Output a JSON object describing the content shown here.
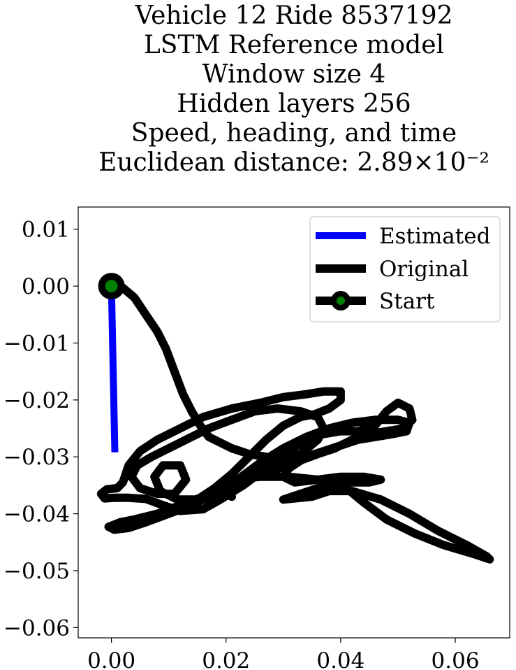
{
  "chart_data": {
    "type": "line",
    "title_lines": [
      "Vehicle 12 Ride 8537192",
      "LSTM Reference model",
      "Window size 4",
      "Hidden layers 256",
      "Speed, heading, and time",
      "Euclidean distance: 2.89×10⁻²"
    ],
    "xlabel": "",
    "ylabel": "",
    "xlim": [
      -0.0058,
      0.0695
    ],
    "ylim": [
      -0.0618,
      0.0139
    ],
    "x_ticks": [
      {
        "value": 0.0,
        "label": "0.00"
      },
      {
        "value": 0.02,
        "label": "0.02"
      },
      {
        "value": 0.04,
        "label": "0.04"
      },
      {
        "value": 0.06,
        "label": "0.06"
      }
    ],
    "y_ticks": [
      {
        "value": 0.01,
        "label": "0.01"
      },
      {
        "value": 0.0,
        "label": "0.00"
      },
      {
        "value": -0.01,
        "label": "−0.01"
      },
      {
        "value": -0.02,
        "label": "−0.02"
      },
      {
        "value": -0.03,
        "label": "−0.03"
      },
      {
        "value": -0.04,
        "label": "−0.04"
      },
      {
        "value": -0.05,
        "label": "−0.05"
      },
      {
        "value": -0.06,
        "label": "−0.06"
      }
    ],
    "grid": false,
    "legend_position": "top-right",
    "series": [
      {
        "name": "Estimated",
        "color": "#0000ff",
        "points": [
          [
            0.0,
            0.0
          ],
          [
            0.0006,
            -0.0292
          ]
        ]
      },
      {
        "name": "Original",
        "color": "#000000",
        "points": [
          [
            0.0,
            0.0
          ],
          [
            0.002,
            -0.0003
          ],
          [
            0.004,
            -0.002
          ],
          [
            0.006,
            -0.005
          ],
          [
            0.008,
            -0.008
          ],
          [
            0.0095,
            -0.011
          ],
          [
            0.011,
            -0.015
          ],
          [
            0.0125,
            -0.019
          ],
          [
            0.014,
            -0.022
          ],
          [
            0.0155,
            -0.0245
          ],
          [
            0.017,
            -0.0265
          ],
          [
            0.019,
            -0.0275
          ],
          [
            0.021,
            -0.0285
          ],
          [
            0.024,
            -0.0295
          ],
          [
            0.027,
            -0.03
          ],
          [
            0.03,
            -0.0305
          ],
          [
            0.033,
            -0.0295
          ],
          [
            0.036,
            -0.027
          ],
          [
            0.037,
            -0.025
          ],
          [
            0.036,
            -0.023
          ],
          [
            0.033,
            -0.022
          ],
          [
            0.029,
            -0.0215
          ],
          [
            0.025,
            -0.022
          ],
          [
            0.021,
            -0.0235
          ],
          [
            0.017,
            -0.025
          ],
          [
            0.013,
            -0.027
          ],
          [
            0.01,
            -0.0285
          ],
          [
            0.007,
            -0.03
          ],
          [
            0.0045,
            -0.0315
          ],
          [
            0.0035,
            -0.0335
          ],
          [
            0.005,
            -0.0355
          ],
          [
            0.008,
            -0.0365
          ],
          [
            0.011,
            -0.0365
          ],
          [
            0.013,
            -0.034
          ],
          [
            0.012,
            -0.0315
          ],
          [
            0.009,
            -0.0315
          ],
          [
            0.0075,
            -0.0335
          ],
          [
            0.0085,
            -0.036
          ],
          [
            0.0115,
            -0.0375
          ],
          [
            0.015,
            -0.0375
          ],
          [
            0.018,
            -0.0355
          ],
          [
            0.021,
            -0.033
          ],
          [
            0.024,
            -0.03
          ],
          [
            0.027,
            -0.027
          ],
          [
            0.03,
            -0.0245
          ],
          [
            0.033,
            -0.023
          ],
          [
            0.0355,
            -0.0225
          ],
          [
            0.038,
            -0.0215
          ],
          [
            0.04,
            -0.02
          ],
          [
            0.04,
            -0.0185
          ],
          [
            0.037,
            -0.0185
          ],
          [
            0.034,
            -0.019
          ],
          [
            0.03,
            -0.0195
          ],
          [
            0.026,
            -0.0205
          ],
          [
            0.021,
            -0.0215
          ],
          [
            0.016,
            -0.023
          ],
          [
            0.012,
            -0.025
          ],
          [
            0.008,
            -0.027
          ],
          [
            0.005,
            -0.029
          ],
          [
            0.003,
            -0.0315
          ],
          [
            0.002,
            -0.0345
          ],
          [
            0.001,
            -0.0355
          ],
          [
            -0.0008,
            -0.0357
          ],
          [
            -0.0018,
            -0.0365
          ],
          [
            -0.0012,
            -0.0373
          ],
          [
            0.0005,
            -0.0372
          ],
          [
            0.003,
            -0.0372
          ],
          [
            0.006,
            -0.0374
          ],
          [
            0.009,
            -0.0385
          ],
          [
            0.012,
            -0.0395
          ],
          [
            0.016,
            -0.0392
          ],
          [
            0.019,
            -0.0375
          ],
          [
            0.023,
            -0.035
          ],
          [
            0.027,
            -0.032
          ],
          [
            0.031,
            -0.029
          ],
          [
            0.034,
            -0.027
          ],
          [
            0.037,
            -0.026
          ],
          [
            0.04,
            -0.0255
          ],
          [
            0.043,
            -0.0255
          ],
          [
            0.046,
            -0.0245
          ],
          [
            0.048,
            -0.022
          ],
          [
            0.05,
            -0.0205
          ],
          [
            0.052,
            -0.0215
          ],
          [
            0.0525,
            -0.0235
          ],
          [
            0.051,
            -0.025
          ],
          [
            0.048,
            -0.0255
          ],
          [
            0.045,
            -0.026
          ],
          [
            0.042,
            -0.027
          ],
          [
            0.039,
            -0.0285
          ],
          [
            0.036,
            -0.0295
          ],
          [
            0.032,
            -0.031
          ],
          [
            0.028,
            -0.0325
          ],
          [
            0.024,
            -0.034
          ],
          [
            0.02,
            -0.0355
          ],
          [
            0.016,
            -0.037
          ],
          [
            0.012,
            -0.0385
          ],
          [
            0.008,
            -0.04
          ],
          [
            0.004,
            -0.041
          ],
          [
            0.0015,
            -0.0415
          ],
          [
            -0.0005,
            -0.0423
          ],
          [
            0.0005,
            -0.0428
          ],
          [
            0.003,
            -0.0425
          ],
          [
            0.006,
            -0.0415
          ],
          [
            0.01,
            -0.04
          ],
          [
            0.014,
            -0.0385
          ],
          [
            0.018,
            -0.0365
          ],
          [
            0.022,
            -0.034
          ],
          [
            0.026,
            -0.031
          ],
          [
            0.03,
            -0.0285
          ],
          [
            0.034,
            -0.0265
          ],
          [
            0.038,
            -0.025
          ],
          [
            0.042,
            -0.024
          ],
          [
            0.046,
            -0.0235
          ],
          [
            0.05,
            -0.0235
          ],
          [
            0.052,
            -0.024
          ],
          [
            0.0515,
            -0.0255
          ],
          [
            0.049,
            -0.026
          ],
          [
            0.046,
            -0.0265
          ],
          [
            0.043,
            -0.027
          ],
          [
            0.04,
            -0.028
          ],
          [
            0.037,
            -0.029
          ],
          [
            0.034,
            -0.03
          ],
          [
            0.031,
            -0.032
          ],
          [
            0.03,
            -0.0335
          ],
          [
            0.032,
            -0.0345
          ],
          [
            0.036,
            -0.034
          ],
          [
            0.04,
            -0.0335
          ],
          [
            0.044,
            -0.0335
          ],
          [
            0.047,
            -0.034
          ],
          [
            0.045,
            -0.0345
          ],
          [
            0.04,
            -0.0345
          ],
          [
            0.036,
            -0.0355
          ],
          [
            0.033,
            -0.0365
          ],
          [
            0.03,
            -0.0375
          ],
          [
            0.035,
            -0.037
          ],
          [
            0.038,
            -0.036
          ],
          [
            0.042,
            -0.036
          ],
          [
            0.047,
            -0.0375
          ],
          [
            0.052,
            -0.04
          ],
          [
            0.057,
            -0.043
          ],
          [
            0.062,
            -0.0455
          ],
          [
            0.0655,
            -0.0475
          ],
          [
            0.066,
            -0.048
          ],
          [
            0.063,
            -0.047
          ],
          [
            0.058,
            -0.0455
          ],
          [
            0.053,
            -0.0435
          ],
          [
            0.048,
            -0.041
          ],
          [
            0.044,
            -0.038
          ],
          [
            0.041,
            -0.0355
          ],
          [
            0.039,
            -0.0345
          ],
          [
            0.036,
            -0.034
          ],
          [
            0.031,
            -0.0335
          ],
          [
            0.026,
            -0.0335
          ],
          [
            0.021,
            -0.034
          ],
          [
            0.0195,
            -0.0352
          ],
          [
            0.02,
            -0.0365
          ],
          [
            0.021,
            -0.037
          ],
          [
            0.0205,
            -0.0362
          ],
          [
            0.018,
            -0.0365
          ],
          [
            0.017,
            -0.037
          ],
          [
            0.0185,
            -0.0375
          ],
          [
            0.021,
            -0.0365
          ]
        ]
      },
      {
        "name": "Start",
        "color": "#008000",
        "points": [
          [
            0.0,
            0.0
          ]
        ]
      }
    ]
  }
}
